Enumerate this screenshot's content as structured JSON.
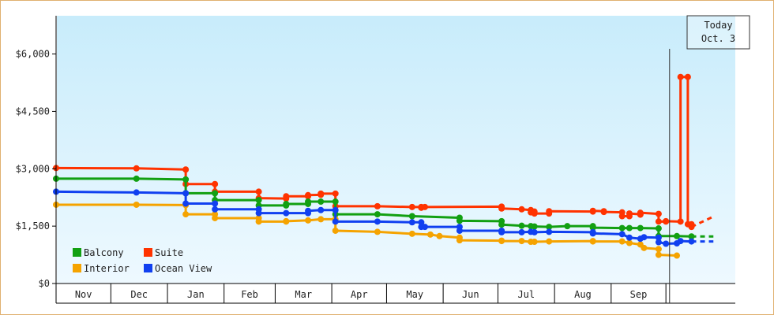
{
  "chart_data": {
    "type": "line",
    "title": "",
    "xlabel": "",
    "ylabel": "",
    "ylim": [
      0,
      7000
    ],
    "y_ticks": [
      {
        "value": 0,
        "label": "$0"
      },
      {
        "value": 1500,
        "label": "$1,500"
      },
      {
        "value": 3000,
        "label": "$3,000"
      },
      {
        "value": 4500,
        "label": "$4,500"
      },
      {
        "value": 6000,
        "label": "$6,000"
      }
    ],
    "x_unit": "days",
    "x_range": [
      0,
      372
    ],
    "months": [
      {
        "label": "Nov",
        "start": 0,
        "end": 30
      },
      {
        "label": "Dec",
        "start": 30,
        "end": 61
      },
      {
        "label": "Jan",
        "start": 61,
        "end": 92
      },
      {
        "label": "Feb",
        "start": 92,
        "end": 120
      },
      {
        "label": "Mar",
        "start": 120,
        "end": 151
      },
      {
        "label": "Apr",
        "start": 151,
        "end": 181
      },
      {
        "label": "May",
        "start": 181,
        "end": 212
      },
      {
        "label": "Jun",
        "start": 212,
        "end": 242
      },
      {
        "label": "Jul",
        "start": 242,
        "end": 273
      },
      {
        "label": "Aug",
        "start": 273,
        "end": 304
      },
      {
        "label": "Sep",
        "start": 304,
        "end": 334
      }
    ],
    "today": {
      "line1": "Today",
      "line2": "Oct. 3",
      "x": 336
    },
    "grid": false,
    "legend_position": "bottom-left",
    "series": [
      {
        "name": "Suite",
        "color": "#ff3300",
        "points": [
          [
            0,
            3020
          ],
          [
            44,
            3010
          ],
          [
            71,
            2980
          ],
          [
            71,
            2600
          ],
          [
            87,
            2600
          ],
          [
            87,
            2400
          ],
          [
            111,
            2400
          ],
          [
            111,
            2230
          ],
          [
            126,
            2220
          ],
          [
            126,
            2280
          ],
          [
            138,
            2280
          ],
          [
            138,
            2310
          ],
          [
            145,
            2320
          ],
          [
            145,
            2350
          ],
          [
            153,
            2350
          ],
          [
            153,
            2020
          ],
          [
            176,
            2020
          ],
          [
            195,
            2000
          ],
          [
            200,
            2000
          ],
          [
            200,
            1980
          ],
          [
            202,
            2000
          ],
          [
            244,
            2010
          ],
          [
            244,
            1960
          ],
          [
            255,
            1940
          ],
          [
            260,
            1920
          ],
          [
            260,
            1860
          ],
          [
            262,
            1880
          ],
          [
            262,
            1830
          ],
          [
            270,
            1830
          ],
          [
            270,
            1890
          ],
          [
            294,
            1880
          ],
          [
            294,
            1900
          ],
          [
            300,
            1890
          ],
          [
            300,
            1870
          ],
          [
            310,
            1860
          ],
          [
            310,
            1760
          ],
          [
            314,
            1760
          ],
          [
            314,
            1830
          ],
          [
            320,
            1810
          ],
          [
            320,
            1800
          ],
          [
            320,
            1850
          ],
          [
            330,
            1820
          ],
          [
            330,
            1620
          ],
          [
            334,
            1620
          ],
          [
            334,
            1630
          ],
          [
            342,
            1620
          ],
          [
            342,
            5400
          ],
          [
            346,
            5400
          ],
          [
            346,
            1550
          ],
          [
            348,
            1550
          ],
          [
            348,
            1480
          ]
        ],
        "projection": [
          [
            348,
            1480
          ],
          [
            360,
            1750
          ]
        ]
      },
      {
        "name": "Balcony",
        "color": "#12a012",
        "points": [
          [
            0,
            2740
          ],
          [
            44,
            2740
          ],
          [
            71,
            2720
          ],
          [
            71,
            2360
          ],
          [
            87,
            2360
          ],
          [
            87,
            2180
          ],
          [
            111,
            2180
          ],
          [
            111,
            2040
          ],
          [
            126,
            2040
          ],
          [
            126,
            2080
          ],
          [
            138,
            2080
          ],
          [
            138,
            2140
          ],
          [
            145,
            2140
          ],
          [
            153,
            2140
          ],
          [
            153,
            1810
          ],
          [
            176,
            1810
          ],
          [
            195,
            1760
          ],
          [
            221,
            1720
          ],
          [
            221,
            1640
          ],
          [
            244,
            1630
          ],
          [
            244,
            1540
          ],
          [
            255,
            1510
          ],
          [
            260,
            1500
          ],
          [
            262,
            1490
          ],
          [
            270,
            1480
          ],
          [
            280,
            1500
          ],
          [
            294,
            1500
          ],
          [
            294,
            1460
          ],
          [
            310,
            1450
          ],
          [
            314,
            1450
          ],
          [
            320,
            1450
          ],
          [
            330,
            1440
          ],
          [
            330,
            1240
          ],
          [
            340,
            1240
          ],
          [
            348,
            1230
          ]
        ],
        "projection": [
          [
            348,
            1230
          ],
          [
            360,
            1230
          ]
        ]
      },
      {
        "name": "Interior",
        "color": "#f5a300",
        "points": [
          [
            0,
            2060
          ],
          [
            44,
            2060
          ],
          [
            71,
            2050
          ],
          [
            71,
            1810
          ],
          [
            87,
            1810
          ],
          [
            87,
            1710
          ],
          [
            111,
            1710
          ],
          [
            111,
            1620
          ],
          [
            126,
            1620
          ],
          [
            126,
            1630
          ],
          [
            138,
            1650
          ],
          [
            145,
            1680
          ],
          [
            153,
            1680
          ],
          [
            153,
            1380
          ],
          [
            176,
            1350
          ],
          [
            195,
            1300
          ],
          [
            205,
            1280
          ],
          [
            210,
            1240
          ],
          [
            221,
            1200
          ],
          [
            221,
            1130
          ],
          [
            244,
            1120
          ],
          [
            244,
            1110
          ],
          [
            255,
            1110
          ],
          [
            260,
            1090
          ],
          [
            262,
            1090
          ],
          [
            270,
            1100
          ],
          [
            294,
            1110
          ],
          [
            294,
            1100
          ],
          [
            310,
            1100
          ],
          [
            314,
            1060
          ],
          [
            320,
            1020
          ],
          [
            322,
            930
          ],
          [
            330,
            900
          ],
          [
            330,
            750
          ],
          [
            340,
            730
          ]
        ],
        "projection": []
      },
      {
        "name": "Ocean View",
        "color": "#1040f0",
        "points": [
          [
            0,
            2400
          ],
          [
            44,
            2380
          ],
          [
            71,
            2360
          ],
          [
            71,
            2090
          ],
          [
            87,
            2090
          ],
          [
            87,
            1940
          ],
          [
            111,
            1940
          ],
          [
            111,
            1840
          ],
          [
            126,
            1840
          ],
          [
            138,
            1840
          ],
          [
            138,
            1900
          ],
          [
            145,
            1920
          ],
          [
            153,
            1920
          ],
          [
            153,
            1620
          ],
          [
            176,
            1620
          ],
          [
            195,
            1600
          ],
          [
            200,
            1600
          ],
          [
            200,
            1480
          ],
          [
            202,
            1480
          ],
          [
            221,
            1480
          ],
          [
            221,
            1380
          ],
          [
            244,
            1380
          ],
          [
            244,
            1340
          ],
          [
            255,
            1340
          ],
          [
            260,
            1350
          ],
          [
            262,
            1340
          ],
          [
            270,
            1350
          ],
          [
            294,
            1340
          ],
          [
            294,
            1310
          ],
          [
            310,
            1290
          ],
          [
            314,
            1200
          ],
          [
            320,
            1170
          ],
          [
            322,
            1210
          ],
          [
            330,
            1200
          ],
          [
            330,
            1080
          ],
          [
            334,
            1040
          ],
          [
            340,
            1050
          ],
          [
            342,
            1110
          ],
          [
            348,
            1100
          ]
        ],
        "projection": [
          [
            348,
            1100
          ],
          [
            360,
            1100
          ]
        ]
      }
    ],
    "legend": [
      {
        "name": "Balcony",
        "color": "#12a012"
      },
      {
        "name": "Suite",
        "color": "#ff3300"
      },
      {
        "name": "Interior",
        "color": "#f5a300"
      },
      {
        "name": "Ocean View",
        "color": "#1040f0"
      }
    ]
  }
}
